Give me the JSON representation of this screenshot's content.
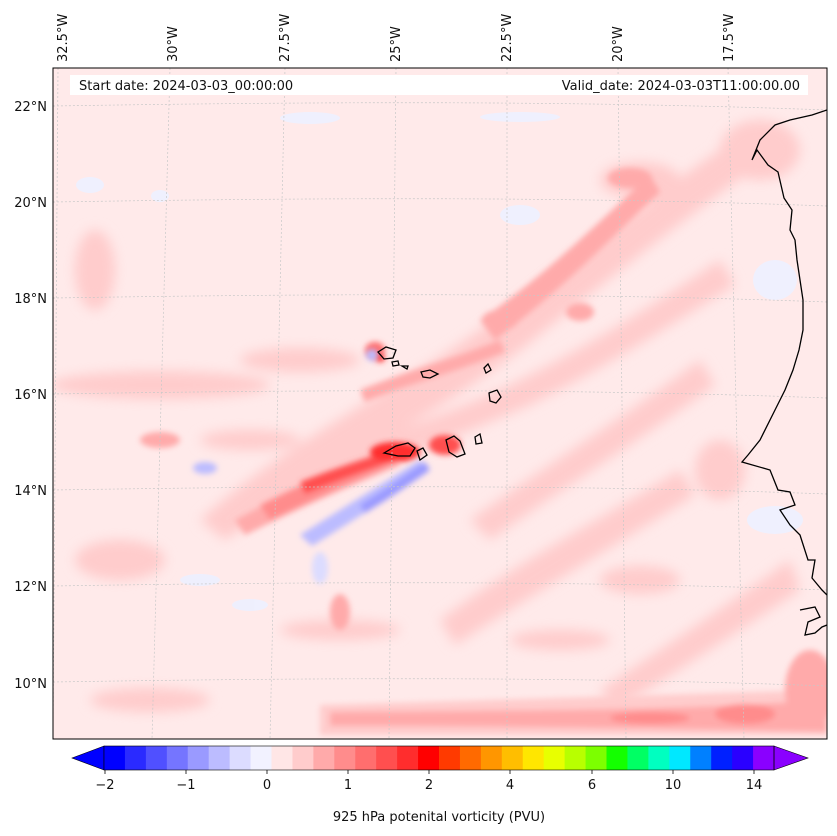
{
  "header": {
    "start_date": "Start date: 2024-03-03_00:00:00",
    "valid_date": "Valid_date: 2024-03-03T11:00:00.00"
  },
  "axes": {
    "lon_labels": [
      "32.5°W",
      "30°W",
      "27.5°W",
      "25°W",
      "22.5°W",
      "20°W",
      "17.5°W"
    ],
    "lat_labels": [
      "22°N",
      "20°N",
      "18°N",
      "16°N",
      "14°N",
      "12°N",
      "10°N"
    ]
  },
  "colorbar": {
    "label": "925 hPa potenital vorticity (PVU)",
    "tick_labels": [
      "−2",
      "−1",
      "0",
      "1",
      "2",
      "4",
      "6",
      "10",
      "14"
    ],
    "colors": [
      "#0000ff",
      "#2a2aff",
      "#5050ff",
      "#7575ff",
      "#9a9aff",
      "#bcbcff",
      "#dcdcff",
      "#f2f2ff",
      "#ffe6e6",
      "#ffcccc",
      "#ffaaaa",
      "#ff8c8c",
      "#ff6e6e",
      "#ff4f4f",
      "#ff2d2d",
      "#ff0000",
      "#ff3a00",
      "#ff6a00",
      "#ff9600",
      "#ffbe00",
      "#ffe600",
      "#e8ff00",
      "#b8ff00",
      "#7cff00",
      "#14ff00",
      "#00ff64",
      "#00ffc0",
      "#00e8ff",
      "#0080ff",
      "#0020ff",
      "#2a00ff",
      "#8a00ff"
    ]
  }
}
